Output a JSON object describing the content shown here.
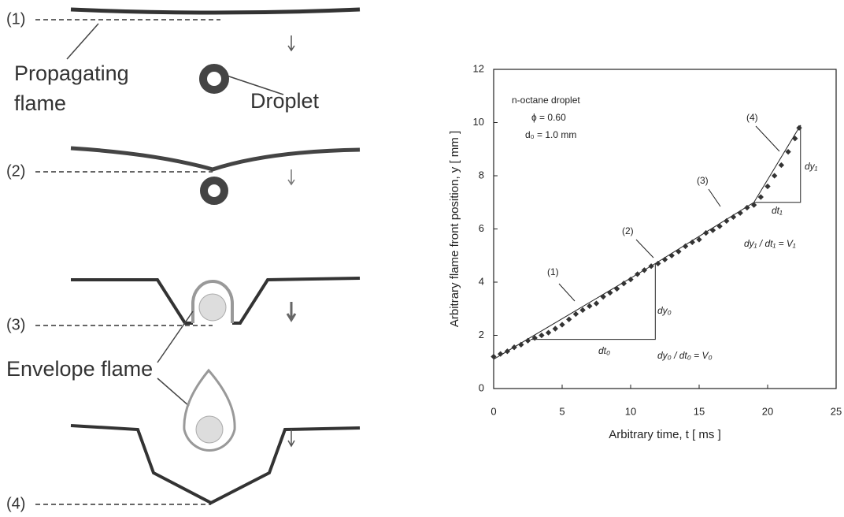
{
  "diagram": {
    "stages": [
      "(1)",
      "(2)",
      "(3)",
      "(4)"
    ],
    "propagating_flame": [
      "Propagating",
      "flame"
    ],
    "droplet": "Droplet",
    "envelope_flame": "Envelope flame"
  },
  "chart_data": {
    "type": "scatter",
    "xlabel": "Arbitrary time, t [ ms ]",
    "ylabel": "Arbitrary flame front position, y [ mm ]",
    "xlim": [
      0,
      25
    ],
    "ylim": [
      0,
      12
    ],
    "xticks": [
      0,
      5,
      10,
      15,
      20,
      25
    ],
    "yticks": [
      0,
      2,
      4,
      6,
      8,
      10,
      12
    ],
    "condition_lines": [
      "n-octane droplet",
      "ϕ = 0.60",
      "d₀ = 1.0 mm"
    ],
    "stage_labels": [
      "(1)",
      "(2)",
      "(3)",
      "(4)"
    ],
    "slope_labels": {
      "dt0": "dt₀",
      "dy0": "dy₀",
      "v0": "dy₀ / dt₀ = V₀",
      "dt1": "dt₁",
      "dy1": "dy₁",
      "v1": "dy₁ / dt₁ = V₁"
    },
    "color": "#333333",
    "series": [
      {
        "x": [
          0,
          0.5,
          1,
          1.5,
          2,
          2.5,
          3,
          3.5,
          4,
          4.5,
          5,
          5.5,
          6,
          6.5,
          7,
          7.5,
          8,
          8.5,
          9,
          9.5,
          10,
          10.5,
          11,
          11.5,
          12,
          12.5,
          13,
          13.5,
          14,
          14.5,
          15,
          15.5,
          16,
          16.5,
          17,
          17.5,
          18,
          18.5,
          19,
          19.5,
          20,
          20.5,
          21,
          21.5,
          22,
          22.3
        ],
        "values": [
          1.2,
          1.3,
          1.4,
          1.55,
          1.65,
          1.8,
          1.9,
          2.0,
          2.1,
          2.25,
          2.4,
          2.6,
          2.8,
          2.95,
          3.1,
          3.2,
          3.45,
          3.6,
          3.75,
          3.95,
          4.1,
          4.3,
          4.45,
          4.6,
          4.7,
          4.85,
          5.0,
          5.15,
          5.35,
          5.5,
          5.6,
          5.85,
          5.95,
          6.1,
          6.3,
          6.45,
          6.6,
          6.8,
          6.9,
          7.2,
          7.6,
          8.0,
          8.4,
          8.9,
          9.4,
          9.8
        ]
      }
    ],
    "fit_line": {
      "x": [
        0,
        11.8,
        19,
        22.4
      ],
      "values": [
        1.1,
        4.7,
        7.0,
        9.9
      ]
    },
    "triangles": [
      {
        "x": [
          2.7,
          11.8,
          11.8
        ],
        "values": [
          1.85,
          1.85,
          4.7
        ]
      },
      {
        "x": [
          19,
          22.4,
          22.4
        ],
        "values": [
          7.0,
          7.0,
          9.9
        ]
      }
    ]
  }
}
